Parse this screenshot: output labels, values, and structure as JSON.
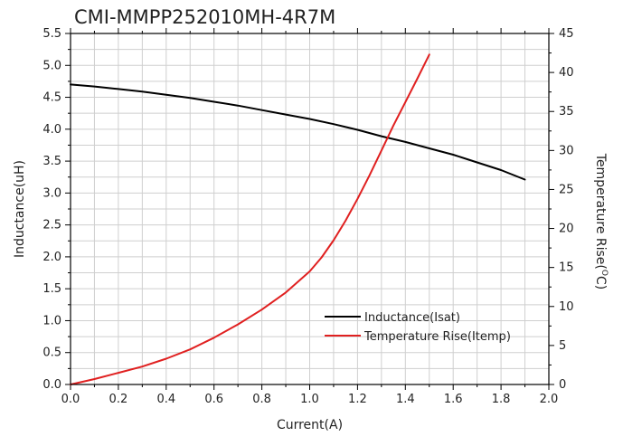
{
  "chart_data": {
    "type": "line",
    "title": "CMI-MMPP252010MH-4R7M",
    "xlabel": "Current(A)",
    "ylabel": "Inductance(uH)",
    "y2label_prefix": "Temperature Rise(",
    "y2label_unit_sup": "O",
    "y2label_suffix": "C)",
    "xlim": [
      0,
      2.0
    ],
    "ylim": [
      0,
      5.5
    ],
    "y2lim": [
      0,
      45
    ],
    "x_ticks": [
      "0.0",
      "0.2",
      "0.4",
      "0.6",
      "0.8",
      "1.0",
      "1.2",
      "1.4",
      "1.6",
      "1.8",
      "2.0"
    ],
    "y_ticks": [
      "0.0",
      "0.5",
      "1.0",
      "1.5",
      "2.0",
      "2.5",
      "3.0",
      "3.5",
      "4.0",
      "4.5",
      "5.0",
      "5.5"
    ],
    "y2_ticks": [
      "0",
      "5",
      "10",
      "15",
      "20",
      "25",
      "30",
      "35",
      "40",
      "45"
    ],
    "grid": true,
    "legend_position": "bottom-right",
    "series": [
      {
        "name": "Inductance(Isat)",
        "axis": "left",
        "color": "#000000",
        "x": [
          0.0,
          0.1,
          0.2,
          0.3,
          0.4,
          0.5,
          0.6,
          0.7,
          0.8,
          0.9,
          1.0,
          1.1,
          1.2,
          1.3,
          1.4,
          1.5,
          1.6,
          1.7,
          1.8,
          1.9
        ],
        "y": [
          4.7,
          4.67,
          4.63,
          4.59,
          4.54,
          4.49,
          4.43,
          4.37,
          4.3,
          4.23,
          4.16,
          4.08,
          3.99,
          3.89,
          3.8,
          3.7,
          3.6,
          3.48,
          3.36,
          3.21
        ]
      },
      {
        "name": "Temperature Rise(Itemp)",
        "axis": "right",
        "color": "#e02020",
        "x": [
          0.0,
          0.1,
          0.2,
          0.3,
          0.4,
          0.5,
          0.6,
          0.7,
          0.8,
          0.9,
          1.0,
          1.05,
          1.1,
          1.15,
          1.2,
          1.25,
          1.3,
          1.35,
          1.4,
          1.45,
          1.5
        ],
        "y": [
          0.0,
          0.7,
          1.5,
          2.3,
          3.3,
          4.5,
          6.0,
          7.7,
          9.6,
          11.8,
          14.5,
          16.3,
          18.5,
          21.0,
          23.8,
          26.8,
          30.0,
          33.2,
          36.2,
          39.2,
          42.3
        ]
      }
    ]
  }
}
